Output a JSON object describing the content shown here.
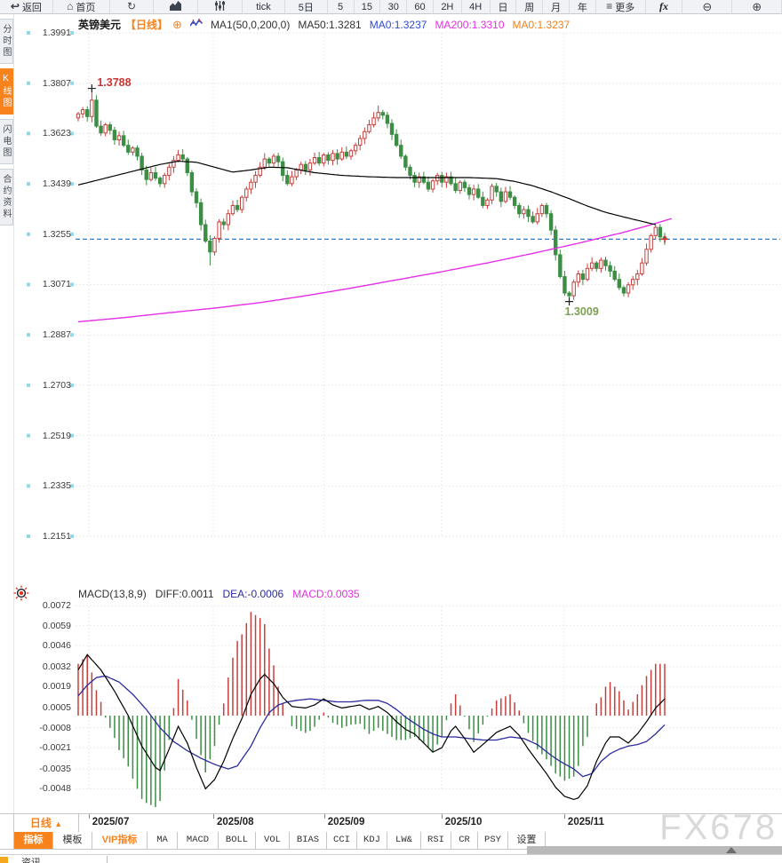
{
  "toolbar": {
    "items": [
      {
        "key": "back",
        "icon": "back-icon",
        "label": "返回"
      },
      {
        "key": "home",
        "icon": "home-icon",
        "label": "首页"
      },
      {
        "key": "refresh",
        "icon": "refresh-icon",
        "label": ""
      },
      {
        "key": "chart-style",
        "icon": "bar-chart-icon",
        "label": ""
      },
      {
        "key": "indicator-settings",
        "icon": "indicators-icon",
        "label": ""
      },
      {
        "key": "tick",
        "label": "tick"
      },
      {
        "key": "5d",
        "label": "5日"
      },
      {
        "key": "m5",
        "label": "5"
      },
      {
        "key": "m15",
        "label": "15"
      },
      {
        "key": "m30",
        "label": "30"
      },
      {
        "key": "m60",
        "label": "60"
      },
      {
        "key": "h2",
        "label": "2H"
      },
      {
        "key": "h4",
        "label": "4H"
      },
      {
        "key": "day",
        "label": "日"
      },
      {
        "key": "week",
        "label": "周"
      },
      {
        "key": "month",
        "label": "月"
      },
      {
        "key": "year",
        "label": "年"
      },
      {
        "key": "more",
        "icon": "menu-icon",
        "label": "更多"
      },
      {
        "key": "fx",
        "icon": "fx-icon",
        "label": ""
      },
      {
        "key": "zoom-out",
        "icon": "zoom-out-icon",
        "label": ""
      },
      {
        "key": "zoom-in",
        "icon": "zoom-in-icon",
        "label": ""
      }
    ]
  },
  "sidebar": {
    "items": [
      {
        "key": "time-chart",
        "label": "分时图",
        "active": false
      },
      {
        "key": "kline-chart",
        "label": "K线图",
        "active": true
      },
      {
        "key": "lightning-chart",
        "label": "闪电图",
        "active": false
      },
      {
        "key": "contract-info",
        "label": "合约资料",
        "active": false
      }
    ]
  },
  "chart_header": {
    "symbol": "英镑美元",
    "timeframe": "【日线】",
    "ma_settings": "MA1(50,0,200,0)",
    "ma50": "MA50:1.3281",
    "ma0_blue": "MA0:1.3237",
    "ma200": "MA200:1.3310",
    "ma0_orange": "MA0:1.3237"
  },
  "macd_header": {
    "params": "MACD(13,8,9)",
    "diff": "DIFF:0.0011",
    "dea": "DEA:-0.0006",
    "macd": "MACD:0.0035"
  },
  "colors": {
    "up": "#c5403d",
    "down": "#3c8e44",
    "ma50_line": "#000000",
    "ma200_line": "#e62ee6",
    "diff_line": "#000000",
    "dea_line": "#2b2b9e",
    "price_line": "#2a7fd0",
    "accent": "#f8821c",
    "grid": "#e3e3e3"
  },
  "chart_data": {
    "main": {
      "type": "candlestick",
      "symbol": "英镑美元",
      "timeframe": "日线",
      "y_ticks": [
        1.3991,
        1.3807,
        1.3623,
        1.3439,
        1.3255,
        1.3071,
        1.2887,
        1.2703,
        1.2519,
        1.2335,
        1.2151
      ],
      "open_first": 1.368,
      "closes": [
        1.3695,
        1.371,
        1.3685,
        1.3745,
        1.365,
        1.3625,
        1.3655,
        1.3635,
        1.36,
        1.3615,
        1.358,
        1.3555,
        1.357,
        1.354,
        1.349,
        1.3455,
        1.348,
        1.346,
        1.344,
        1.347,
        1.35,
        1.3525,
        1.3545,
        1.353,
        1.348,
        1.341,
        1.337,
        1.329,
        1.323,
        1.319,
        1.324,
        1.33,
        1.329,
        1.333,
        1.336,
        1.3345,
        1.339,
        1.342,
        1.3445,
        1.347,
        1.35,
        1.353,
        1.3515,
        1.354,
        1.352,
        1.347,
        1.344,
        1.3465,
        1.349,
        1.351,
        1.349,
        1.3515,
        1.3535,
        1.3515,
        1.3545,
        1.3525,
        1.355,
        1.353,
        1.3555,
        1.354,
        1.356,
        1.358,
        1.3605,
        1.363,
        1.3655,
        1.368,
        1.37,
        1.369,
        1.366,
        1.362,
        1.358,
        1.354,
        1.35,
        1.347,
        1.3445,
        1.3465,
        1.3445,
        1.342,
        1.345,
        1.347,
        1.3445,
        1.3465,
        1.344,
        1.3415,
        1.3445,
        1.3425,
        1.34,
        1.342,
        1.339,
        1.336,
        1.338,
        1.343,
        1.341,
        1.3375,
        1.341,
        1.339,
        1.336,
        1.333,
        1.3345,
        1.332,
        1.33,
        1.333,
        1.336,
        1.333,
        1.327,
        1.318,
        1.31,
        1.304,
        1.303,
        1.308,
        1.311,
        1.309,
        1.313,
        1.315,
        1.313,
        1.316,
        1.314,
        1.312,
        1.309,
        1.306,
        1.304,
        1.307,
        1.309,
        1.311,
        1.315,
        1.32,
        1.325,
        1.328,
        1.3245,
        1.3237
      ],
      "wick_overrides": {
        "3": {
          "h": 1.3788
        },
        "29": {
          "l": 1.314
        },
        "66": {
          "h": 1.3725
        },
        "108": {
          "l": 1.3009
        }
      },
      "ma50_points": [
        [
          0,
          1.3435
        ],
        [
          6,
          1.346
        ],
        [
          12,
          1.3485
        ],
        [
          18,
          1.351
        ],
        [
          22,
          1.3522
        ],
        [
          26,
          1.3518
        ],
        [
          30,
          1.35
        ],
        [
          34,
          1.3482
        ],
        [
          38,
          1.349
        ],
        [
          42,
          1.35
        ],
        [
          46,
          1.3498
        ],
        [
          52,
          1.348
        ],
        [
          58,
          1.347
        ],
        [
          64,
          1.3465
        ],
        [
          70,
          1.3462
        ],
        [
          78,
          1.3462
        ],
        [
          86,
          1.3462
        ],
        [
          92,
          1.3458
        ],
        [
          96,
          1.3448
        ],
        [
          100,
          1.3432
        ],
        [
          104,
          1.341
        ],
        [
          108,
          1.3385
        ],
        [
          112,
          1.3358
        ],
        [
          116,
          1.3335
        ],
        [
          120,
          1.3318
        ],
        [
          124,
          1.3302
        ],
        [
          127,
          1.329
        ]
      ],
      "ma200_points": [
        [
          0,
          1.2935
        ],
        [
          10,
          1.295
        ],
        [
          20,
          1.2968
        ],
        [
          30,
          1.2985
        ],
        [
          40,
          1.3005
        ],
        [
          50,
          1.303
        ],
        [
          60,
          1.3058
        ],
        [
          70,
          1.3088
        ],
        [
          80,
          1.3118
        ],
        [
          90,
          1.315
        ],
        [
          100,
          1.3185
        ],
        [
          110,
          1.3222
        ],
        [
          115,
          1.3242
        ],
        [
          120,
          1.3262
        ],
        [
          125,
          1.3285
        ],
        [
          130.5,
          1.3312
        ]
      ],
      "last_price": 1.3237,
      "annotations": [
        {
          "text": "1.3788",
          "index": 3,
          "price": 1.3788,
          "position": "above",
          "color": "#cf3333"
        },
        {
          "text": "1.3009",
          "index": 108,
          "price": 1.3009,
          "position": "below",
          "color": "#7d9f52"
        }
      ],
      "last_marker": {
        "index": 129,
        "price": 1.3237,
        "color": "#d03030"
      }
    },
    "months": [
      {
        "label": "2025/07",
        "index": 2.3
      },
      {
        "label": "2025/08",
        "index": 29.7
      },
      {
        "label": "2025/09",
        "index": 54.1
      },
      {
        "label": "2025/10",
        "index": 79.9
      },
      {
        "label": "2025/11",
        "index": 106.9
      }
    ],
    "macd": {
      "type": "macd",
      "y_ticks": [
        0.0072,
        0.0059,
        0.0046,
        0.0032,
        0.0019,
        0.0005,
        -0.0008,
        -0.0021,
        -0.0035,
        -0.0048
      ],
      "hist_rule": "2*(diff-dea)",
      "diff_points": [
        [
          0,
          0.003
        ],
        [
          2,
          0.004
        ],
        [
          5,
          0.003
        ],
        [
          8,
          0.0016
        ],
        [
          11,
          0.0
        ],
        [
          14,
          -0.002
        ],
        [
          17,
          -0.0034
        ],
        [
          18,
          -0.0036
        ],
        [
          20,
          -0.0022
        ],
        [
          22,
          -0.0007
        ],
        [
          24,
          -0.0018
        ],
        [
          26,
          -0.0034
        ],
        [
          28,
          -0.0048
        ],
        [
          30,
          -0.0042
        ],
        [
          32,
          -0.003
        ],
        [
          34,
          -0.0015
        ],
        [
          36,
          -0.0002
        ],
        [
          38,
          0.0014
        ],
        [
          40,
          0.0024
        ],
        [
          41,
          0.0027
        ],
        [
          43,
          0.0021
        ],
        [
          45,
          0.0012
        ],
        [
          47,
          0.0006
        ],
        [
          50,
          0.0005
        ],
        [
          52,
          0.0007
        ],
        [
          54,
          0.0011
        ],
        [
          56,
          0.0007
        ],
        [
          58,
          0.0005
        ],
        [
          60,
          0.0006
        ],
        [
          62,
          0.0007
        ],
        [
          64,
          0.0004
        ],
        [
          66,
          0.0006
        ],
        [
          68,
          0.0002
        ],
        [
          70,
          -0.0004
        ],
        [
          72,
          -0.0009
        ],
        [
          74,
          -0.0012
        ],
        [
          76,
          -0.0018
        ],
        [
          78,
          -0.0024
        ],
        [
          80,
          -0.0021
        ],
        [
          82,
          -0.001
        ],
        [
          83,
          -0.0007
        ],
        [
          85,
          -0.0015
        ],
        [
          87,
          -0.0024
        ],
        [
          89,
          -0.0019
        ],
        [
          92,
          -0.0011
        ],
        [
          95,
          -0.0007
        ],
        [
          97,
          -0.0013
        ],
        [
          99,
          -0.0022
        ],
        [
          101,
          -0.003
        ],
        [
          103,
          -0.0038
        ],
        [
          105,
          -0.0047
        ],
        [
          107,
          -0.0053
        ],
        [
          109,
          -0.0055
        ],
        [
          110,
          -0.0054
        ],
        [
          112,
          -0.0046
        ],
        [
          114,
          -0.003
        ],
        [
          116,
          -0.0018
        ],
        [
          117,
          -0.0014
        ],
        [
          119,
          -0.0014
        ],
        [
          121,
          -0.0018
        ],
        [
          123,
          -0.0012
        ],
        [
          125,
          -0.0004
        ],
        [
          127,
          0.0005
        ],
        [
          129,
          0.0011
        ]
      ],
      "dea_points": [
        [
          0,
          0.0013
        ],
        [
          2,
          0.002
        ],
        [
          4,
          0.0025
        ],
        [
          6,
          0.0026
        ],
        [
          9,
          0.0022
        ],
        [
          12,
          0.0014
        ],
        [
          15,
          0.0004
        ],
        [
          18,
          -0.0008
        ],
        [
          21,
          -0.0017
        ],
        [
          24,
          -0.0023
        ],
        [
          27,
          -0.0028
        ],
        [
          30,
          -0.0032
        ],
        [
          33,
          -0.0035
        ],
        [
          35,
          -0.0033
        ],
        [
          38,
          -0.002
        ],
        [
          40,
          -0.0008
        ],
        [
          42,
          0.0002
        ],
        [
          44,
          0.0007
        ],
        [
          46,
          0.0009
        ],
        [
          48,
          0.001
        ],
        [
          51,
          0.0011
        ],
        [
          54,
          0.001
        ],
        [
          57,
          0.0009
        ],
        [
          60,
          0.0009
        ],
        [
          63,
          0.001
        ],
        [
          66,
          0.001
        ],
        [
          68,
          0.0008
        ],
        [
          70,
          0.0004
        ],
        [
          72,
          -0.0001
        ],
        [
          74,
          -0.0005
        ],
        [
          76,
          -0.0009
        ],
        [
          78,
          -0.0012
        ],
        [
          80,
          -0.0014
        ],
        [
          83,
          -0.0014
        ],
        [
          86,
          -0.0015
        ],
        [
          89,
          -0.0016
        ],
        [
          92,
          -0.0016
        ],
        [
          95,
          -0.0014
        ],
        [
          98,
          -0.0015
        ],
        [
          101,
          -0.0019
        ],
        [
          104,
          -0.0026
        ],
        [
          106,
          -0.003
        ],
        [
          109,
          -0.0035
        ],
        [
          111,
          -0.004
        ],
        [
          113,
          -0.0038
        ],
        [
          115,
          -0.003
        ],
        [
          117,
          -0.0025
        ],
        [
          119,
          -0.0022
        ],
        [
          121,
          -0.002
        ],
        [
          123,
          -0.0019
        ],
        [
          125,
          -0.0017
        ],
        [
          127,
          -0.0012
        ],
        [
          129,
          -0.0006
        ]
      ]
    }
  },
  "bottom": {
    "period_label": "日线",
    "period_arrow": "▲",
    "indicator_tabs": [
      {
        "key": "indicator",
        "label": "指标",
        "style": "active"
      },
      {
        "key": "template",
        "label": "模板"
      },
      {
        "key": "vip-indicator",
        "label": "VIP指标",
        "style": "orange"
      },
      {
        "key": "ma",
        "label": "MA"
      },
      {
        "key": "macd",
        "label": "MACD"
      },
      {
        "key": "boll",
        "label": "BOLL"
      },
      {
        "key": "vol",
        "label": "VOL"
      },
      {
        "key": "bias",
        "label": "BIAS"
      },
      {
        "key": "cci",
        "label": "CCI"
      },
      {
        "key": "kdj",
        "label": "KDJ"
      },
      {
        "key": "lw",
        "label": "LW&"
      },
      {
        "key": "rsi",
        "label": "RSI"
      },
      {
        "key": "cr",
        "label": "CR"
      },
      {
        "key": "psy",
        "label": "PSY"
      },
      {
        "key": "settings",
        "label": "设置"
      }
    ],
    "partial_tab": "资讯",
    "watermark": "FX678"
  }
}
